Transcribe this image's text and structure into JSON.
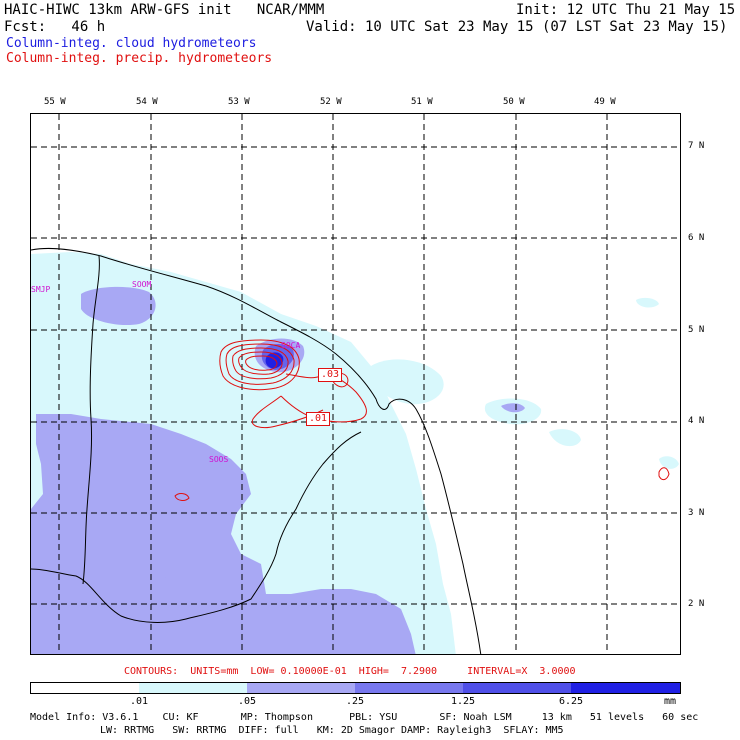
{
  "header": {
    "model_line": "HAIC-HIWC 13km ARW-GFS init   NCAR/MMM",
    "init_line": "Init: 12 UTC Thu 21 May 15",
    "fcst_line": "Fcst:   46 h",
    "valid_line": "Valid: 10 UTC Sat 23 May 15 (07 LST Sat 23 May 15)",
    "field1": "Column-integ. cloud hydrometeors",
    "field2": "Column-integ. precip. hydrometeors"
  },
  "colors": {
    "field1": "#1c1ce0",
    "field2": "#e01010",
    "shade_1": "#d8f8fc",
    "shade_2": "#a8a8f4",
    "shade_3": "#6464ec",
    "shade_4": "#2020e4"
  },
  "axes": {
    "lon_labels": [
      "55 W",
      "54 W",
      "53 W",
      "52 W",
      "51 W",
      "50 W",
      "49 W"
    ],
    "lat_labels": [
      "7 N",
      "6 N",
      "5 N",
      "4 N",
      "3 N",
      "2 N"
    ]
  },
  "stations": [
    "SMJP",
    "SOOM",
    "SOCA",
    "SOOS"
  ],
  "contour_labels": [
    ".03",
    ".01"
  ],
  "contours_info": "CONTOURS:  UNITS=mm  LOW= 0.10000E-01  HIGH=  7.2900     INTERVAL=X  3.0000",
  "colorbar": {
    "ticks": [
      ".01",
      ".05",
      ".25",
      "1.25",
      "6.25"
    ],
    "units": "mm"
  },
  "model_info": {
    "line1": "Model Info: V3.6.1    CU: KF       MP: Thompson      PBL: YSU       SF: Noah LSM     13 km   51 levels   60 sec",
    "line2": "LW: RRTMG   SW: RRTMG  DIFF: full   KM: 2D Smagor DAMP: Rayleigh3  SFLAY: MM5"
  }
}
